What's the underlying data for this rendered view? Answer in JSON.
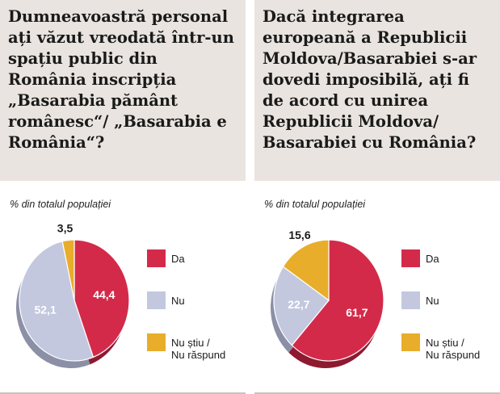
{
  "panels": [
    {
      "question": "Dumneavoastră personal ați văzut vreodată într-un spațiu public din România inscripția „Basarabia pământ românesc“/ „Basarabia e România“?",
      "subtitle": "% din totalul populației"
    },
    {
      "question": "Dacă integrarea europeană a Republicii Moldova/Basarabiei s-ar dovedi imposibilă, ați fi de acord cu unirea Republicii Moldova/ Basarabiei cu România?",
      "subtitle": "% din totalul populației"
    }
  ],
  "colors": {
    "Da": "#d42a4a",
    "Nu": "#c3c8df",
    "NuStiu": "#e8ad2a"
  },
  "chart_data": [
    {
      "type": "pie",
      "categories": [
        "Da",
        "Nu",
        "Nu știu / Nu răspund"
      ],
      "values": [
        44.4,
        52.1,
        3.5
      ],
      "value_labels": [
        "44,4",
        "52,1",
        "3,5"
      ],
      "legend": [
        {
          "lines": [
            "Da"
          ]
        },
        {
          "lines": [
            "Nu"
          ]
        },
        {
          "lines": [
            "Nu știu /",
            "Nu răspund"
          ]
        }
      ]
    },
    {
      "type": "pie",
      "categories": [
        "Da",
        "Nu",
        "Nu știu / Nu răspund"
      ],
      "values": [
        61.7,
        22.7,
        15.6
      ],
      "value_labels": [
        "61,7",
        "22,7",
        "15,6"
      ],
      "legend": [
        {
          "lines": [
            "Da"
          ]
        },
        {
          "lines": [
            "Nu"
          ]
        },
        {
          "lines": [
            "Nu știu /",
            "Nu răspund"
          ]
        }
      ]
    }
  ]
}
